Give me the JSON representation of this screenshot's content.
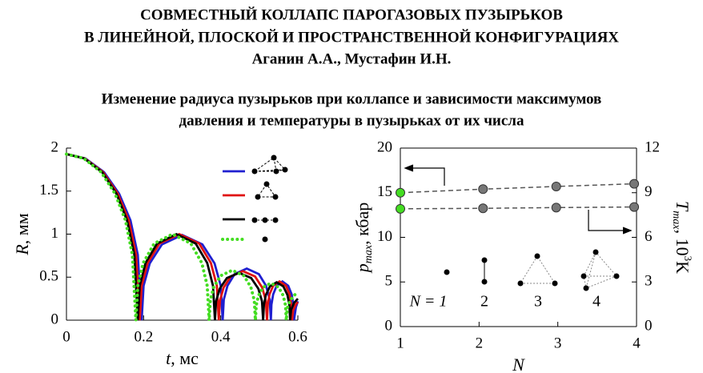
{
  "title": [
    "СОВМЕСТНЫЙ КОЛЛАПС ПАРОГАЗОВЫХ ПУЗЫРЬКОВ",
    "В ЛИНЕЙНОЙ, ПЛОСКОЙ И ПРОСТРАНСТВЕННОЙ КОНФИГУРАЦИЯХ"
  ],
  "authors": "Аганин А.А., Мустафин И.Н.",
  "subtitle": [
    "Изменение радиуса пузырьков при коллапсе и зависимости максимумов",
    "давления и температуры в пузырьках от их числа"
  ],
  "chart_data": [
    {
      "type": "line",
      "xlabel": {
        "main": "t",
        "rest": ", мс"
      },
      "ylabel": {
        "main": "R",
        "rest": ", мм"
      },
      "xlim": [
        0,
        0.6
      ],
      "xticks": [
        0,
        0.2,
        0.4,
        0.6
      ],
      "ylim": [
        0,
        2
      ],
      "yticks": [
        0,
        0.5,
        1,
        1.5,
        2
      ],
      "series": [
        {
          "color": "#1f1fd0",
          "dotted": false,
          "x": [
            0,
            0.049,
            0.0975,
            0.1365,
            0.166,
            0.185,
            0.195,
            0.2,
            0.216,
            0.2475,
            0.3,
            0.3525,
            0.384,
            0.4,
            0.405,
            0.408,
            0.4175,
            0.436,
            0.4675,
            0.499,
            0.5175,
            0.527,
            0.53,
            0.5315,
            0.536,
            0.545,
            0.56,
            0.575,
            0.584,
            0.5885,
            0.59,
            0.595,
            0.6
          ],
          "values": [
            1.93,
            1.88,
            1.72,
            1.47,
            1.16,
            0.76,
            0,
            0.4,
            0.66,
            0.88,
            0.99,
            0.88,
            0.66,
            0.4,
            0,
            0.24,
            0.4,
            0.535,
            0.6,
            0.535,
            0.4,
            0.24,
            0,
            0.18,
            0.3,
            0.4,
            0.45,
            0.4,
            0.3,
            0.18,
            0,
            0.15,
            0.22
          ]
        },
        {
          "color": "#e01010",
          "dotted": false,
          "x": [
            0,
            0.0475,
            0.095,
            0.133,
            0.1615,
            0.1805,
            0.19,
            0.195,
            0.2105,
            0.241,
            0.2925,
            0.344,
            0.3745,
            0.39,
            0.395,
            0.398,
            0.4075,
            0.426,
            0.4575,
            0.489,
            0.5075,
            0.517,
            0.52,
            0.522,
            0.5265,
            0.536,
            0.5525,
            0.569,
            0.5785,
            0.583,
            0.585,
            0.5875,
            0.595,
            0.6
          ],
          "values": [
            1.93,
            1.88,
            1.72,
            1.47,
            1.16,
            0.76,
            0,
            0.4,
            0.665,
            0.891,
            1,
            0.891,
            0.665,
            0.4,
            0,
            0.228,
            0.379,
            0.508,
            0.57,
            0.508,
            0.379,
            0.228,
            0,
            0.18,
            0.3,
            0.4,
            0.45,
            0.4,
            0.3,
            0.18,
            0,
            0.11,
            0.186,
            0.21
          ]
        },
        {
          "color": "#000000",
          "dotted": false,
          "x": [
            0,
            0.046,
            0.0925,
            0.1295,
            0.157,
            0.176,
            0.185,
            0.19,
            0.205,
            0.235,
            0.285,
            0.335,
            0.365,
            0.38,
            0.385,
            0.388,
            0.3975,
            0.416,
            0.4475,
            0.479,
            0.4975,
            0.507,
            0.51,
            0.512,
            0.517,
            0.5275,
            0.545,
            0.5625,
            0.573,
            0.578,
            0.58,
            0.5825,
            0.59,
            0.6
          ],
          "values": [
            1.93,
            1.88,
            1.72,
            1.47,
            1.16,
            0.76,
            0,
            0.4,
            0.665,
            0.891,
            1,
            0.891,
            0.665,
            0.4,
            0,
            0.22,
            0.366,
            0.49,
            0.55,
            0.49,
            0.366,
            0.22,
            0,
            0.176,
            0.293,
            0.392,
            0.44,
            0.392,
            0.293,
            0.176,
            0,
            0.12,
            0.2,
            0.25
          ]
        },
        {
          "color": "#44dd22",
          "dotted": true,
          "x": [
            0,
            0.045,
            0.09,
            0.126,
            0.153,
            0.171,
            0.18,
            0.185,
            0.199,
            0.2275,
            0.275,
            0.3225,
            0.351,
            0.365,
            0.37,
            0.373,
            0.382,
            0.4,
            0.43,
            0.46,
            0.478,
            0.487,
            0.49,
            0.492,
            0.498,
            0.51,
            0.53,
            0.55,
            0.562,
            0.568,
            0.57,
            0.5725,
            0.58,
            0.595,
            0.6
          ],
          "values": [
            1.93,
            1.88,
            1.72,
            1.47,
            1.16,
            0.76,
            0,
            0.4,
            0.665,
            0.891,
            1,
            0.891,
            0.665,
            0.4,
            0,
            0.232,
            0.386,
            0.517,
            0.58,
            0.517,
            0.386,
            0.232,
            0,
            0.172,
            0.286,
            0.383,
            0.43,
            0.383,
            0.286,
            0.172,
            0,
            0.14,
            0.23,
            0.31,
            0.33
          ]
        }
      ]
    },
    {
      "type": "line",
      "xlabel": {
        "main": "N"
      },
      "ylabel": {
        "main": "p",
        "sub": "max",
        "rest": ", кбар"
      },
      "y2label": {
        "main": "T",
        "sub": "max",
        "rest": ", 10",
        "sup": "3",
        "tail": "K"
      },
      "xlim": [
        1,
        4
      ],
      "xticks": [
        1,
        2,
        3,
        4
      ],
      "ylim": [
        0,
        20
      ],
      "yticks": [
        0,
        5,
        10,
        15,
        20
      ],
      "y2lim": [
        0,
        12
      ],
      "y2ticks": [
        0,
        3,
        6,
        9,
        12
      ],
      "series": [
        {
          "axis": "y",
          "x": [
            1,
            2.05,
            2.98,
            3.97
          ],
          "values": [
            15,
            15.4,
            15.7,
            16
          ],
          "marker_colors": [
            "#44dd22",
            "#777777",
            "#777777",
            "#777777"
          ]
        },
        {
          "axis": "y2",
          "x": [
            1,
            2.05,
            2.98,
            3.97
          ],
          "values": [
            7.92,
            7.95,
            8.0,
            8.04
          ],
          "marker_colors": [
            "#44dd22",
            "#777777",
            "#777777",
            "#777777"
          ]
        }
      ],
      "annotations": [
        "N = 1",
        "2",
        "3",
        "4"
      ]
    }
  ]
}
